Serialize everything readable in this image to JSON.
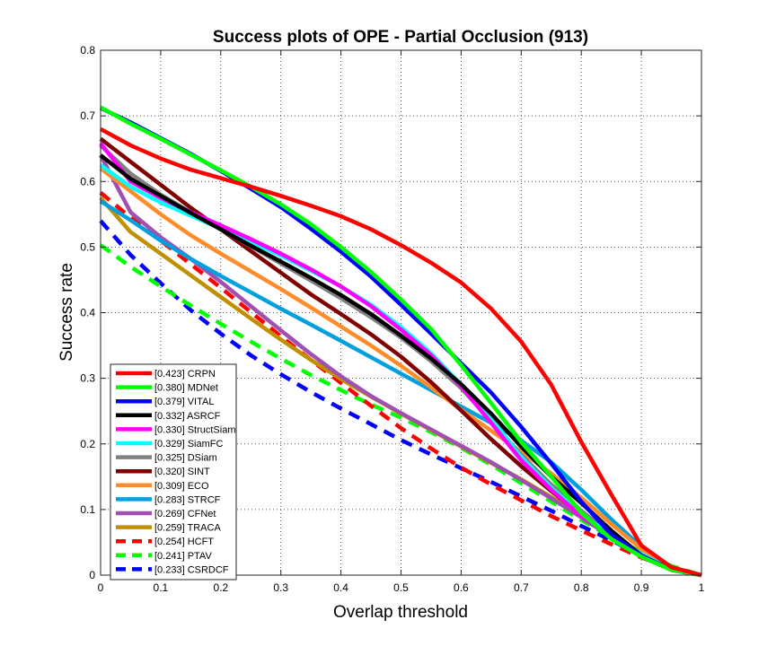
{
  "chart_data": {
    "type": "line",
    "title": "Success plots of OPE - Partial Occlusion (913)",
    "xlabel": "Overlap threshold",
    "ylabel": "Success rate",
    "xlim": [
      0,
      1
    ],
    "ylim": [
      0,
      0.8
    ],
    "xticks": [
      0,
      0.1,
      0.2,
      0.3,
      0.4,
      0.5,
      0.6,
      0.7,
      0.8,
      0.9,
      1
    ],
    "xtick_labels": [
      "0",
      "0.1",
      "0.2",
      "0.3",
      "0.4",
      "0.5",
      "0.6",
      "0.7",
      "0.8",
      "0.9",
      "1"
    ],
    "yticks": [
      0,
      0.1,
      0.2,
      0.3,
      0.4,
      0.5,
      0.6,
      0.7,
      0.8
    ],
    "ytick_labels": [
      "0",
      "0.1",
      "0.2",
      "0.3",
      "0.4",
      "0.5",
      "0.6",
      "0.7",
      "0.8"
    ],
    "grid": true,
    "legend_position": "bottom-left",
    "x": [
      0,
      0.05,
      0.1,
      0.15,
      0.2,
      0.25,
      0.3,
      0.35,
      0.4,
      0.45,
      0.5,
      0.55,
      0.6,
      0.65,
      0.7,
      0.75,
      0.8,
      0.85,
      0.9,
      0.95,
      1
    ],
    "series": [
      {
        "name": "CRPN",
        "legend": "[0.423] CRPN",
        "color": "#ff0000",
        "dashed": false,
        "values": [
          0.68,
          0.655,
          0.635,
          0.618,
          0.605,
          0.592,
          0.578,
          0.563,
          0.547,
          0.527,
          0.503,
          0.476,
          0.446,
          0.406,
          0.356,
          0.29,
          0.203,
          0.123,
          0.045,
          0.012,
          0.0
        ]
      },
      {
        "name": "MDNet",
        "legend": "[0.380] MDNet",
        "color": "#00ff00",
        "dashed": false,
        "values": [
          0.713,
          0.688,
          0.665,
          0.641,
          0.617,
          0.592,
          0.565,
          0.535,
          0.5,
          0.462,
          0.42,
          0.375,
          0.32,
          0.262,
          0.203,
          0.15,
          0.095,
          0.055,
          0.028,
          0.008,
          0.0
        ]
      },
      {
        "name": "VITAL",
        "legend": "[0.379] VITAL",
        "color": "#0000ff",
        "dashed": false,
        "values": [
          0.712,
          0.69,
          0.666,
          0.642,
          0.616,
          0.589,
          0.561,
          0.528,
          0.493,
          0.455,
          0.412,
          0.368,
          0.323,
          0.278,
          0.226,
          0.17,
          0.112,
          0.062,
          0.03,
          0.008,
          0.0
        ]
      },
      {
        "name": "ASRCF",
        "legend": "[0.332] ASRCF",
        "color": "#000000",
        "dashed": false,
        "values": [
          0.64,
          0.604,
          0.578,
          0.552,
          0.527,
          0.502,
          0.478,
          0.453,
          0.427,
          0.398,
          0.365,
          0.33,
          0.291,
          0.246,
          0.196,
          0.15,
          0.11,
          0.068,
          0.03,
          0.008,
          0.0
        ]
      },
      {
        "name": "StructSiam",
        "legend": "[0.330] StructSiam",
        "color": "#ff00ff",
        "dashed": false,
        "values": [
          0.658,
          0.6,
          0.575,
          0.553,
          0.533,
          0.512,
          0.49,
          0.466,
          0.44,
          0.41,
          0.374,
          0.335,
          0.288,
          0.232,
          0.175,
          0.13,
          0.09,
          0.058,
          0.03,
          0.008,
          0.0
        ]
      },
      {
        "name": "SiamFC",
        "legend": "[0.329] SiamFC",
        "color": "#00ffff",
        "dashed": false,
        "values": [
          0.625,
          0.592,
          0.568,
          0.548,
          0.528,
          0.508,
          0.487,
          0.464,
          0.44,
          0.412,
          0.378,
          0.338,
          0.29,
          0.238,
          0.18,
          0.133,
          0.093,
          0.06,
          0.032,
          0.009,
          0.0
        ]
      },
      {
        "name": "DSiam",
        "legend": "[0.325] DSiam",
        "color": "#808080",
        "dashed": false,
        "values": [
          0.655,
          0.612,
          0.58,
          0.553,
          0.527,
          0.501,
          0.475,
          0.449,
          0.422,
          0.393,
          0.362,
          0.326,
          0.285,
          0.235,
          0.183,
          0.138,
          0.098,
          0.062,
          0.03,
          0.008,
          0.0
        ]
      },
      {
        "name": "SINT",
        "legend": "[0.320] SINT",
        "color": "#800000",
        "dashed": false,
        "values": [
          0.665,
          0.63,
          0.595,
          0.56,
          0.527,
          0.494,
          0.461,
          0.428,
          0.398,
          0.367,
          0.333,
          0.294,
          0.251,
          0.207,
          0.166,
          0.128,
          0.092,
          0.058,
          0.028,
          0.008,
          0.0
        ]
      },
      {
        "name": "ECO",
        "legend": "[0.309] ECO",
        "color": "#ff8c2a",
        "dashed": false,
        "values": [
          0.62,
          0.585,
          0.55,
          0.518,
          0.49,
          0.463,
          0.436,
          0.408,
          0.379,
          0.35,
          0.319,
          0.286,
          0.252,
          0.22,
          0.188,
          0.155,
          0.118,
          0.078,
          0.04,
          0.012,
          0.0
        ]
      },
      {
        "name": "STRCF",
        "legend": "[0.283] STRCF",
        "color": "#00a0e0",
        "dashed": false,
        "values": [
          0.57,
          0.541,
          0.51,
          0.482,
          0.456,
          0.431,
          0.406,
          0.382,
          0.357,
          0.332,
          0.307,
          0.282,
          0.257,
          0.232,
          0.205,
          0.172,
          0.13,
          0.085,
          0.043,
          0.012,
          0.0
        ]
      },
      {
        "name": "CFNet",
        "legend": "[0.269] CFNet",
        "color": "#a050b0",
        "dashed": false,
        "values": [
          0.64,
          0.553,
          0.515,
          0.482,
          0.447,
          0.41,
          0.373,
          0.337,
          0.303,
          0.273,
          0.247,
          0.222,
          0.197,
          0.172,
          0.145,
          0.117,
          0.088,
          0.058,
          0.03,
          0.008,
          0.0
        ]
      },
      {
        "name": "TRACA",
        "legend": "[0.259] TRACA",
        "color": "#c09000",
        "dashed": false,
        "values": [
          0.575,
          0.523,
          0.49,
          0.457,
          0.424,
          0.391,
          0.359,
          0.328,
          0.299,
          0.272,
          0.246,
          0.221,
          0.196,
          0.171,
          0.146,
          0.119,
          0.09,
          0.06,
          0.032,
          0.009,
          0.0
        ]
      },
      {
        "name": "HCFT",
        "legend": "[0.254] HCFT",
        "color": "#ff0000",
        "dashed": true,
        "values": [
          0.583,
          0.545,
          0.51,
          0.474,
          0.438,
          0.401,
          0.364,
          0.328,
          0.293,
          0.258,
          0.224,
          0.193,
          0.164,
          0.138,
          0.114,
          0.09,
          0.068,
          0.047,
          0.027,
          0.01,
          0.0
        ]
      },
      {
        "name": "PTAV",
        "legend": "[0.241] PTAV",
        "color": "#00ff00",
        "dashed": true,
        "values": [
          0.503,
          0.47,
          0.44,
          0.411,
          0.383,
          0.356,
          0.33,
          0.305,
          0.282,
          0.26,
          0.24,
          0.218,
          0.194,
          0.168,
          0.14,
          0.112,
          0.084,
          0.058,
          0.035,
          0.014,
          0.0
        ]
      },
      {
        "name": "CSRDCF",
        "legend": "[0.233] CSRDCF",
        "color": "#0000ff",
        "dashed": true,
        "values": [
          0.54,
          0.488,
          0.445,
          0.404,
          0.368,
          0.335,
          0.306,
          0.279,
          0.254,
          0.23,
          0.206,
          0.184,
          0.163,
          0.142,
          0.12,
          0.098,
          0.075,
          0.053,
          0.03,
          0.01,
          0.0
        ]
      }
    ]
  }
}
